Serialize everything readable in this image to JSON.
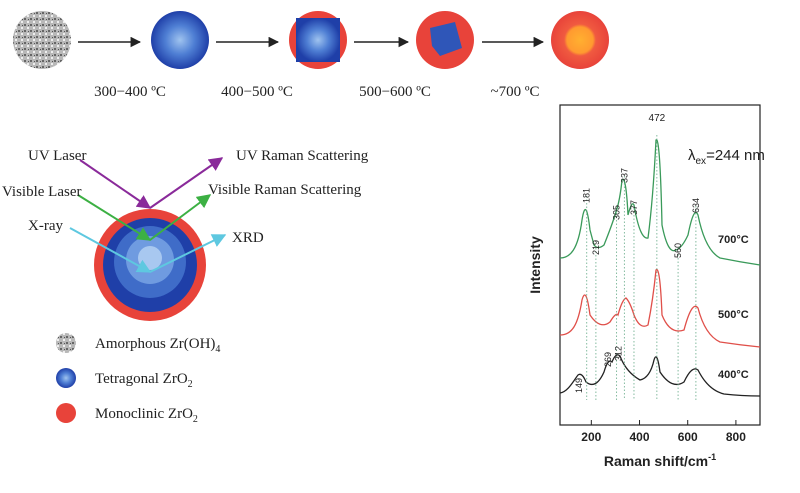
{
  "diagram": {
    "temperatures": [
      "300−400 ºC",
      "400−500 ºC",
      "500−600 ºC",
      "~700 ºC"
    ],
    "beams": [
      "UV Laser",
      "UV Raman Scattering",
      "Visible Laser",
      "Visible Raman Scattering",
      "X-ray",
      "XRD"
    ],
    "legend": [
      {
        "text": "Amorphous Zr(OH)",
        "sub": "4"
      },
      {
        "text": "Tetragonal ZrO",
        "sub": "2"
      },
      {
        "text": "Monoclinic ZrO",
        "sub": "2"
      }
    ]
  },
  "raman": {
    "excitation": {
      "symbol": "λ",
      "sub": "ex",
      "text": "=244 nm"
    },
    "ylabel": "Intensity",
    "xlabel": {
      "text": "Raman shift/cm",
      "sup": "-1"
    },
    "xlim": [
      70,
      900
    ],
    "xticks": [
      200,
      400,
      600,
      800
    ],
    "spectra": [
      {
        "name": "700°C",
        "peaks": [
          181,
          219,
          305,
          337,
          377,
          472,
          560,
          634
        ]
      },
      {
        "name": "500°C"
      },
      {
        "name": "400°C",
        "peaks": [
          149,
          269,
          312
        ]
      }
    ]
  }
}
